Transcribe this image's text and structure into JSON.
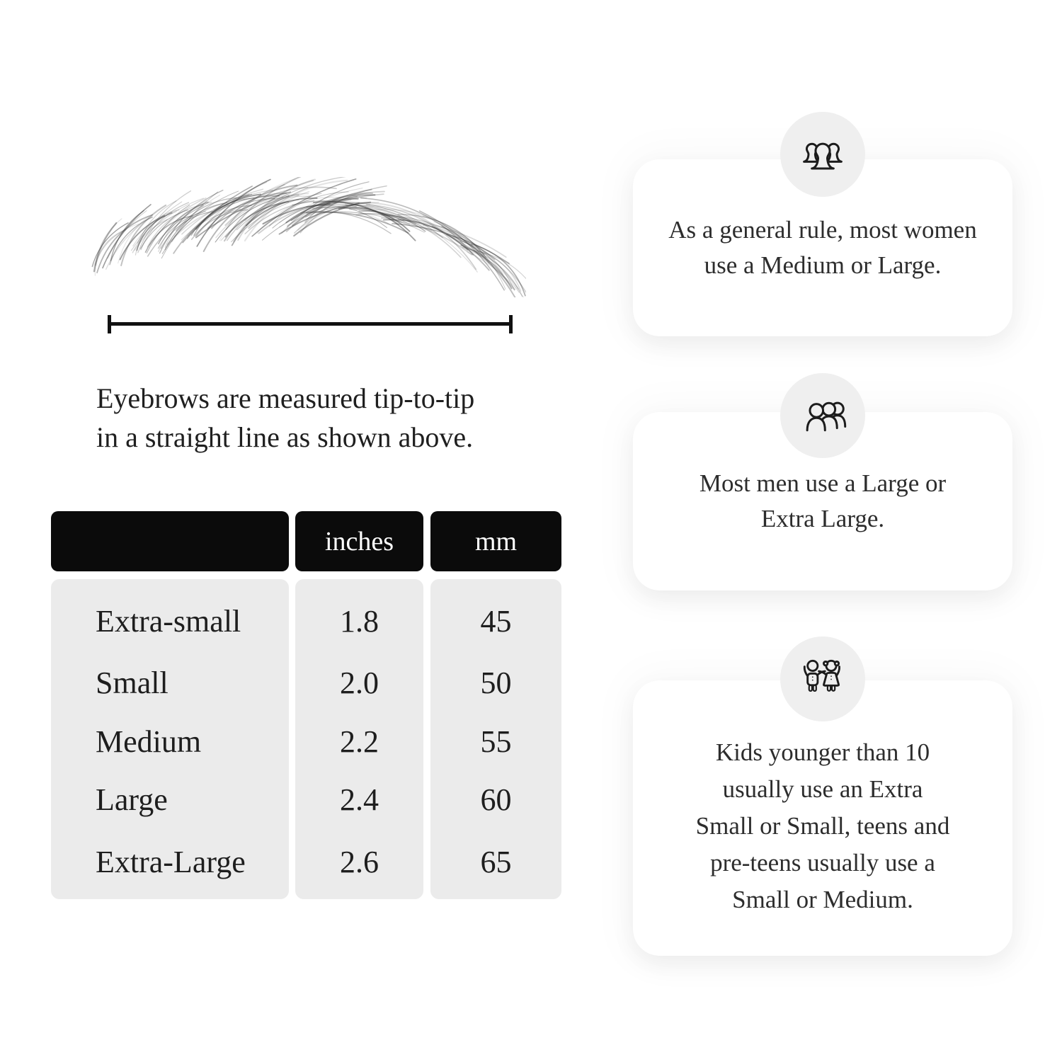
{
  "infographic": {
    "measurement_caption": "Eyebrows are measured tip-to-tip\nin a straight line as shown above.",
    "size_table": {
      "headers": {
        "size": "",
        "inches": "inches",
        "mm": "mm"
      },
      "rows": [
        {
          "size": "Extra-small",
          "inches": "1.8",
          "mm": "45"
        },
        {
          "size": "Small",
          "inches": "2.0",
          "mm": "50"
        },
        {
          "size": "Medium",
          "inches": "2.2",
          "mm": "55"
        },
        {
          "size": "Large",
          "inches": "2.4",
          "mm": "60"
        },
        {
          "size": "Extra-Large",
          "inches": "2.6",
          "mm": "65"
        }
      ]
    },
    "cards": [
      {
        "icon": "women-group-icon",
        "text": "As a general rule, most women\nuse a Medium or Large."
      },
      {
        "icon": "men-group-icon",
        "text": "Most men use a Large or\nExtra Large."
      },
      {
        "icon": "kids-icon",
        "text": "Kids younger than 10\nusually use an Extra\nSmall or Small, teens and\npre-teens usually use a\nSmall or Medium."
      }
    ],
    "colors": {
      "table_header_bg": "#0b0b0b",
      "table_body_bg": "#ebebeb",
      "icon_circle_bg": "#efefef",
      "line": "#111111",
      "text": "#1e1e1e"
    }
  }
}
